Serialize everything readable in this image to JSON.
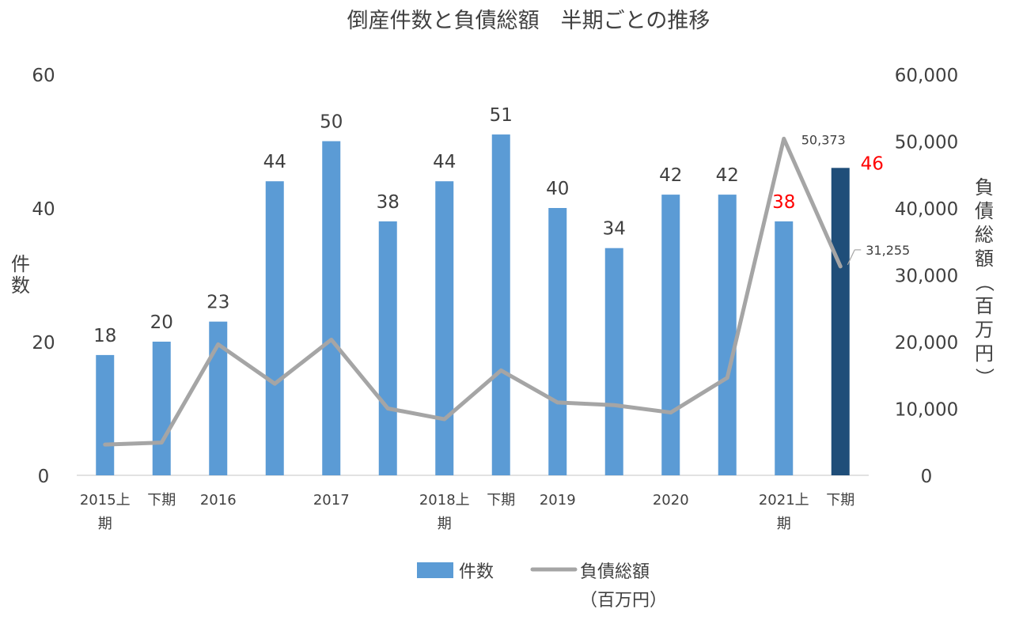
{
  "chart_data": {
    "type": "bar+line",
    "title": "倒産件数と負債総額　半期ごとの推移",
    "categories": [
      [
        "2015上",
        "期"
      ],
      [
        "下期"
      ],
      [
        "2016"
      ],
      [
        ""
      ],
      [
        "2017"
      ],
      [
        ""
      ],
      [
        "2018上",
        "期"
      ],
      [
        "下期"
      ],
      [
        "2019"
      ],
      [
        ""
      ],
      [
        "2020"
      ],
      [
        ""
      ],
      [
        "2021上",
        "期"
      ],
      [
        "下期"
      ]
    ],
    "ylabel_left": "件数",
    "ylabel_right": "負債総額（百万円）",
    "yticks_left": [
      "0",
      "20",
      "40",
      "60"
    ],
    "yticks_right": [
      "0",
      "10,000",
      "20,000",
      "30,000",
      "40,000",
      "50,000",
      "60,000"
    ],
    "ylim_left": [
      0,
      60
    ],
    "ylim_right": [
      0,
      60000
    ],
    "series": [
      {
        "name": "件数",
        "kind": "bar",
        "axis": "left",
        "values": [
          18,
          20,
          23,
          44,
          50,
          38,
          44,
          51,
          40,
          34,
          42,
          42,
          38,
          46
        ],
        "labels": [
          "18",
          "20",
          "23",
          "44",
          "50",
          "38",
          "44",
          "51",
          "40",
          "34",
          "42",
          "42",
          "38",
          "46"
        ]
      },
      {
        "name": "負債総額（百万円）",
        "kind": "line",
        "axis": "right",
        "values": [
          4600,
          4900,
          19600,
          13700,
          20300,
          10000,
          8400,
          15700,
          10900,
          10500,
          9400,
          14600,
          50373,
          31255
        ],
        "point_labels": [
          {
            "index": 12,
            "text": "50,373"
          },
          {
            "index": 13,
            "text": "31,255"
          }
        ]
      }
    ],
    "legend": {
      "position": "bottom",
      "bar_label": "件数",
      "line_label_1": "負債総額",
      "line_label_2": "（百万円）"
    },
    "colors": {
      "bar": "#5B9BD5",
      "bar_highlight": "#1F4E79",
      "line": "#A5A5A5",
      "highlight_label": "#FF0000",
      "text": "#404040",
      "axis": "#D9D9D9"
    },
    "highlight_bar_index": 13,
    "red_label_indices": [
      12,
      13
    ]
  }
}
